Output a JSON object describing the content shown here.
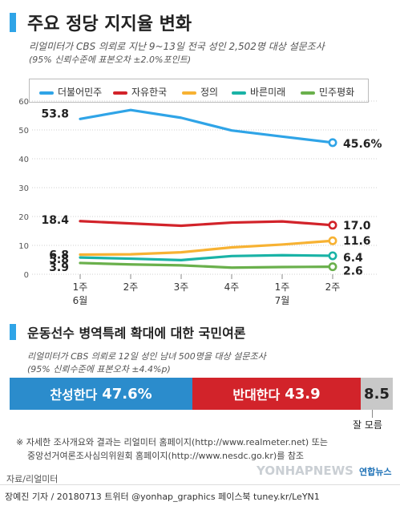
{
  "header": {
    "title": "주요 정당 지지율 변화",
    "sub1": "리얼미터가 CBS 의뢰로 지난 9~13일 전국 성인 2,502명 대상 설문조사",
    "sub2": "(95% 신뢰수준에 표본오차 ±2.0%포인트)"
  },
  "chart_data": [
    {
      "type": "line",
      "title": "주요 정당 지지율 변화",
      "categories": [
        "1주 6월",
        "2주",
        "3주",
        "4주",
        "1주 7월",
        "2주"
      ],
      "x_tick_top": [
        "1주",
        "2주",
        "3주",
        "4주",
        "1주",
        "2주"
      ],
      "x_tick_bottom": [
        "6월",
        "",
        "",
        "",
        "7월",
        ""
      ],
      "y_ticks": [
        "0",
        "10",
        "20",
        "30",
        "40",
        "50",
        "60"
      ],
      "ylim": [
        0,
        60
      ],
      "grid": true,
      "legend_position": "top",
      "series": [
        {
          "name": "더불어민주",
          "color": "#2fa4e7",
          "values": [
            53.8,
            56.9,
            54.2,
            49.8,
            47.7,
            45.6
          ],
          "start_label": "53.8",
          "end_label": "45.6%"
        },
        {
          "name": "자유한국",
          "color": "#d2232a",
          "values": [
            18.4,
            17.6,
            16.8,
            17.9,
            18.3,
            17.0
          ],
          "start_label": "18.4",
          "end_label": "17.0"
        },
        {
          "name": "정의",
          "color": "#f7b233",
          "values": [
            6.8,
            6.9,
            7.6,
            9.3,
            10.3,
            11.6
          ],
          "start_label": "6.8",
          "end_label": "11.6"
        },
        {
          "name": "바른미래",
          "color": "#1ab3a6",
          "values": [
            5.8,
            5.4,
            4.9,
            6.3,
            6.6,
            6.4
          ],
          "start_label": "5.8",
          "end_label": "6.4"
        },
        {
          "name": "민주평화",
          "color": "#6ab04c",
          "values": [
            3.9,
            3.4,
            3.1,
            2.3,
            2.5,
            2.6
          ],
          "start_label": "3.9",
          "end_label": "2.6"
        }
      ]
    },
    {
      "type": "bar",
      "orientation": "horizontal-stacked",
      "title": "운동선수 병역특례 확대에 대한 국민여론",
      "categories": [
        "찬성한다",
        "반대한다",
        "잘 모름"
      ],
      "values": [
        47.6,
        43.9,
        8.5
      ],
      "colors": [
        "#2b8ccc",
        "#d2232a",
        "#c8c8c8"
      ],
      "value_labels": [
        "47.6%",
        "43.9",
        "8.5"
      ]
    }
  ],
  "poll2": {
    "title": "운동선수 병역특례 확대에 대한 국민여론",
    "sub1": "리얼미터가 CBS 의뢰로 12일 성인 남녀 500명을 대상 설문조사",
    "sub2": "(95% 신뢰수준에 표본오차 ±4.4%p)",
    "dontknow_label": "잘 모름"
  },
  "notes": {
    "line1": "※ 자세한 조사개요와 결과는 리얼미터 홈페이지(http://www.realmeter.net) 또는",
    "line2": "중앙선거여론조사심의위원회 홈페이지(http://www.nesdc.go.kr)를 참조"
  },
  "source": "자료/리얼미터",
  "credit": "장예진 기자 / 20180713 트위터 @yonhap_graphics  페이스북 tuney.kr/LeYN1",
  "watermark": "YONHAPNEWS",
  "logo": "연합뉴스"
}
